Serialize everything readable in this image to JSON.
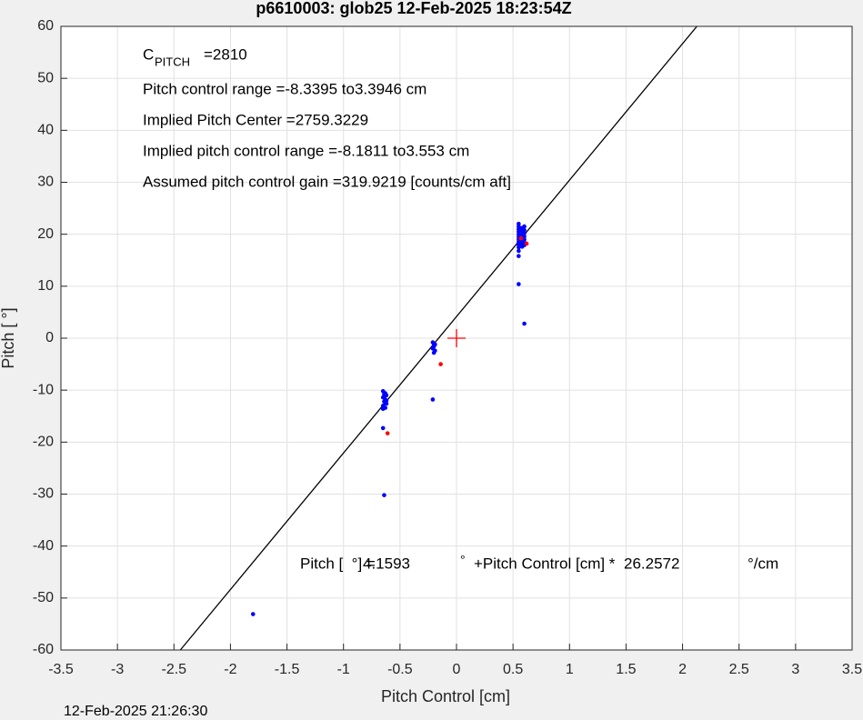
{
  "chart_data": {
    "type": "scatter",
    "title": "p6610003: glob25 12-Feb-2025 18:23:54Z",
    "xlabel": "Pitch Control [cm]",
    "ylabel": "Pitch [  °]",
    "footer": "12-Feb-2025 21:26:30",
    "xlim": [
      -3.5,
      3.5
    ],
    "ylim": [
      -60,
      60
    ],
    "xticks": [
      -3.5,
      -3,
      -2.5,
      -2,
      -1.5,
      -1,
      -0.5,
      0,
      0.5,
      1,
      1.5,
      2,
      2.5,
      3,
      3.5
    ],
    "yticks": [
      -60,
      -50,
      -40,
      -30,
      -20,
      -10,
      0,
      10,
      20,
      30,
      40,
      50,
      60
    ],
    "grid": true,
    "annotations": {
      "c_symbol": "C",
      "c_sub": "PITCH",
      "c_value": "=2810",
      "lines": [
        "Pitch control range =-8.3395 to3.3946 cm",
        "Implied Pitch Center =2759.3229",
        "Implied pitch control range =-8.1811 to3.553 cm",
        "Assumed pitch control gain =319.9219 [counts/cm aft]"
      ]
    },
    "fit": {
      "color": "#000000",
      "intercept": 4.1593,
      "slope": 26.2572,
      "text": [
        "Pitch [  °] =",
        "°",
        "+Pitch Control [cm] *",
        "°/cm"
      ]
    },
    "series": [
      {
        "color": "#0000ff",
        "x": [
          -0.65,
          -0.63,
          -0.62,
          -0.65,
          -0.63,
          -0.64,
          -0.62,
          -0.65,
          -0.63,
          -0.64,
          -0.62,
          -0.65,
          -0.64,
          -0.65,
          -0.64,
          -0.21,
          -0.19,
          -0.2,
          -0.21,
          -0.19,
          -0.2,
          -0.2,
          -0.21,
          0.55,
          0.55,
          0.55,
          0.55,
          0.55,
          0.55,
          0.55,
          0.55,
          0.55,
          0.55,
          0.55,
          0.58,
          0.58,
          0.58,
          0.58,
          0.58,
          0.58,
          0.58,
          0.6,
          0.6,
          0.6,
          0.6,
          0.6,
          0.6,
          0.6,
          0.55,
          0.55,
          0.6,
          -1.8
        ],
        "values": [
          -10.2,
          -10.6,
          -11,
          -11.4,
          -11.8,
          -12.2,
          -12.6,
          -13,
          -13.4,
          -10.8,
          -12,
          -13.6,
          -11.2,
          -17.3,
          -30.2,
          -0.8,
          -1.2,
          -1.6,
          -2,
          -2.4,
          -2.8,
          -1.4,
          -11.8,
          22,
          21.5,
          21,
          20.5,
          20,
          19.5,
          19,
          18.5,
          18,
          17.5,
          16.8,
          21.2,
          20.6,
          20,
          19.4,
          18.8,
          18.2,
          17.6,
          21.5,
          20.8,
          20.2,
          19.6,
          19,
          18.4,
          17.9,
          15.8,
          10.4,
          2.8,
          -53.1
        ]
      },
      {
        "color": "#ff0000",
        "x": [
          -0.61,
          -0.14,
          0.62,
          0.57
        ],
        "values": [
          -18.3,
          -5.0,
          18.2,
          19.2
        ]
      }
    ],
    "center": {
      "color": "#ff0000",
      "x": 0,
      "value": 0
    }
  }
}
